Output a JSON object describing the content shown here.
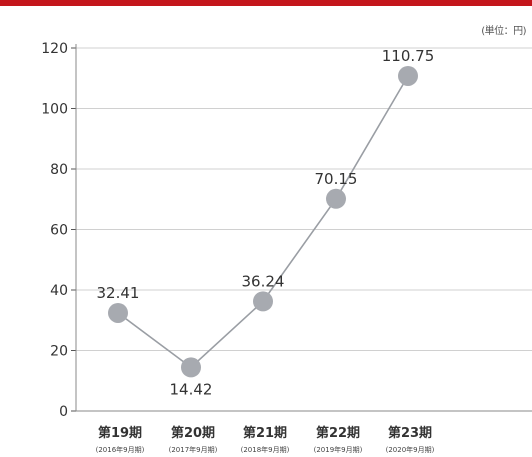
{
  "colors": {
    "accent_bar": "#c4161c",
    "marker": "#a7aab0",
    "line": "#9a9ea4",
    "grid": "#d0d0d0"
  },
  "unit_label": "(単位：円)",
  "chart_data": {
    "type": "line",
    "categories": [
      "第19期",
      "第20期",
      "第21期",
      "第22期",
      "第23期"
    ],
    "subcategories": [
      "(2016年9月期)",
      "(2017年9月期)",
      "(2018年9月期)",
      "(2019年9月期)",
      "(2020年9月期)"
    ],
    "values": [
      32.41,
      14.42,
      36.24,
      70.15,
      110.75
    ],
    "value_labels": [
      "32.41",
      "14.42",
      "36.24",
      "70.15",
      "110.75"
    ],
    "yticks": [
      0,
      20,
      40,
      60,
      80,
      100,
      120
    ],
    "ylim": [
      0,
      120
    ],
    "grid": true,
    "title": "",
    "xlabel": "",
    "ylabel": ""
  }
}
